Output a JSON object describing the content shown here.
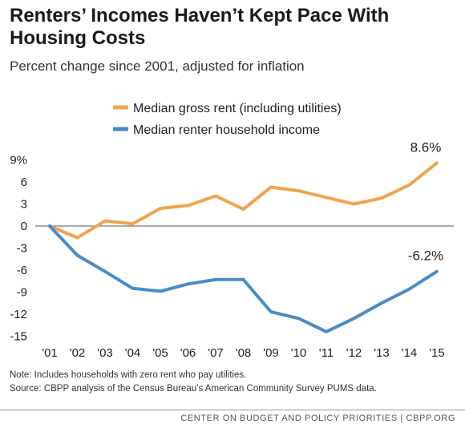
{
  "title": "Renters’ Incomes Haven’t Kept Pace With Housing Costs",
  "subtitle": "Percent change since 2001, adjusted for inflation",
  "note": "Note: Includes households with zero rent who pay utilities.",
  "source": "Source: CBPP analysis of the Census Bureau’s American Community Survey PUMS data.",
  "footer": "CENTER ON BUDGET AND POLICY PRIORITIES | CBPP.ORG",
  "chart_data": {
    "type": "line",
    "categories": [
      "'01",
      "'02",
      "'03",
      "'04",
      "'05",
      "'06",
      "'07",
      "'08",
      "'09",
      "'10",
      "'11",
      "'12",
      "'13",
      "'14",
      "'15"
    ],
    "series": [
      {
        "name": "Median gross rent (including utilities)",
        "color": "#f0a44c",
        "values": [
          0,
          -1.6,
          0.7,
          0.3,
          2.4,
          2.8,
          4.1,
          2.3,
          5.3,
          4.8,
          3.9,
          3.0,
          3.8,
          5.6,
          8.6
        ],
        "end_label": "8.6%"
      },
      {
        "name": "Median renter household income",
        "color": "#4a8cc4",
        "values": [
          0,
          -4.0,
          -6.2,
          -8.5,
          -8.9,
          -7.9,
          -7.3,
          -7.3,
          -11.7,
          -12.6,
          -14.4,
          -12.6,
          -10.5,
          -8.6,
          -6.2
        ],
        "end_label": "-6.2%"
      }
    ],
    "yticks": [
      "9%",
      "6",
      "3",
      "0",
      "-3",
      "-6",
      "-9",
      "-12",
      "-15"
    ],
    "ylim": [
      -15,
      9
    ],
    "grid": false,
    "legend": "top"
  }
}
